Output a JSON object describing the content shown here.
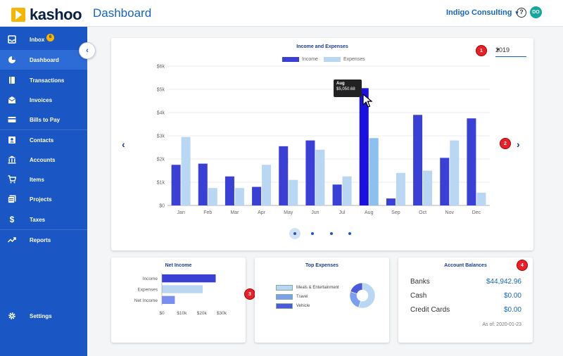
{
  "app": {
    "logo_text": "kashoo",
    "page_title": "Dashboard",
    "company": "Indigo Consulting",
    "avatar_initials": "DO",
    "help_glyph": "?"
  },
  "sidebar": {
    "items": [
      {
        "label": "Inbox",
        "icon": "inbox-icon",
        "badge": "6"
      },
      {
        "label": "Dashboard",
        "icon": "dashboard-icon",
        "active": true
      },
      {
        "label": "Transactions",
        "icon": "book-icon"
      },
      {
        "label": "Invoices",
        "icon": "envelope-icon"
      },
      {
        "label": "Bills to Pay",
        "icon": "credit-card-icon"
      },
      {
        "label": "Contacts",
        "icon": "contact-card-icon"
      },
      {
        "label": "Accounts",
        "icon": "bank-icon"
      },
      {
        "label": "Items",
        "icon": "cart-icon"
      },
      {
        "label": "Projects",
        "icon": "projects-icon"
      },
      {
        "label": "Taxes",
        "icon": "dollar-icon"
      },
      {
        "label": "Reports",
        "icon": "trending-up-icon"
      },
      {
        "label": "Settings",
        "icon": "gear-icon"
      }
    ]
  },
  "main_chart": {
    "year": "2019",
    "tooltip": {
      "month": "Aug",
      "value": "$5,050.68"
    },
    "markers": [
      "1",
      "2",
      "3",
      "4"
    ]
  },
  "chart_data": [
    {
      "type": "bar",
      "title": "Income and Expenses",
      "categories": [
        "Jan",
        "Feb",
        "Mar",
        "Apr",
        "May",
        "Jun",
        "Jul",
        "Aug",
        "Sep",
        "Oct",
        "Nov",
        "Dec"
      ],
      "series": [
        {
          "name": "Income",
          "values": [
            1750,
            1800,
            1250,
            800,
            2550,
            2800,
            900,
            5050.68,
            300,
            3900,
            2050,
            3750
          ]
        },
        {
          "name": "Expenses",
          "values": [
            2950,
            750,
            750,
            1750,
            1100,
            2400,
            1250,
            2900,
            1400,
            1500,
            2800,
            550
          ]
        }
      ],
      "ylim": [
        0,
        6000
      ],
      "yticks": [
        "$0",
        "$1k",
        "$2k",
        "$3k",
        "$4k",
        "$5k",
        "$6k"
      ],
      "grid": true,
      "legend": "top-center",
      "colors": {
        "income": "#3a3fd6",
        "expenses": "#b9d6f2",
        "income_highlight": "#1a10e0",
        "expenses_highlight": "#8cc0f0"
      }
    },
    {
      "type": "bar",
      "orientation": "horizontal",
      "title": "Net Income",
      "categories": [
        "Income",
        "Expenses",
        "Net Income"
      ],
      "values": [
        27000,
        20500,
        6500
      ],
      "xlim": [
        0,
        30000
      ],
      "xticks": [
        "$0",
        "$10k",
        "$20k",
        "$30k"
      ],
      "colors": [
        "#3a3fd6",
        "#b9d6f2",
        "#7a8ef0"
      ]
    },
    {
      "type": "pie",
      "title": "Top Expenses",
      "labels": [
        "Meals & Entertainment",
        "Travel",
        "Vehicle"
      ],
      "values": [
        55,
        25,
        20
      ],
      "colors": [
        "#b9d6f2",
        "#7a9ef0",
        "#4a5ad8"
      ]
    }
  ],
  "account_balances": {
    "title": "Account Balances",
    "rows": [
      {
        "label": "Banks",
        "value": "$44,942.96"
      },
      {
        "label": "Cash",
        "value": "$0.00"
      },
      {
        "label": "Credit Cards",
        "value": "$0.00"
      }
    ],
    "as_of": "As of: 2020-01-23"
  }
}
